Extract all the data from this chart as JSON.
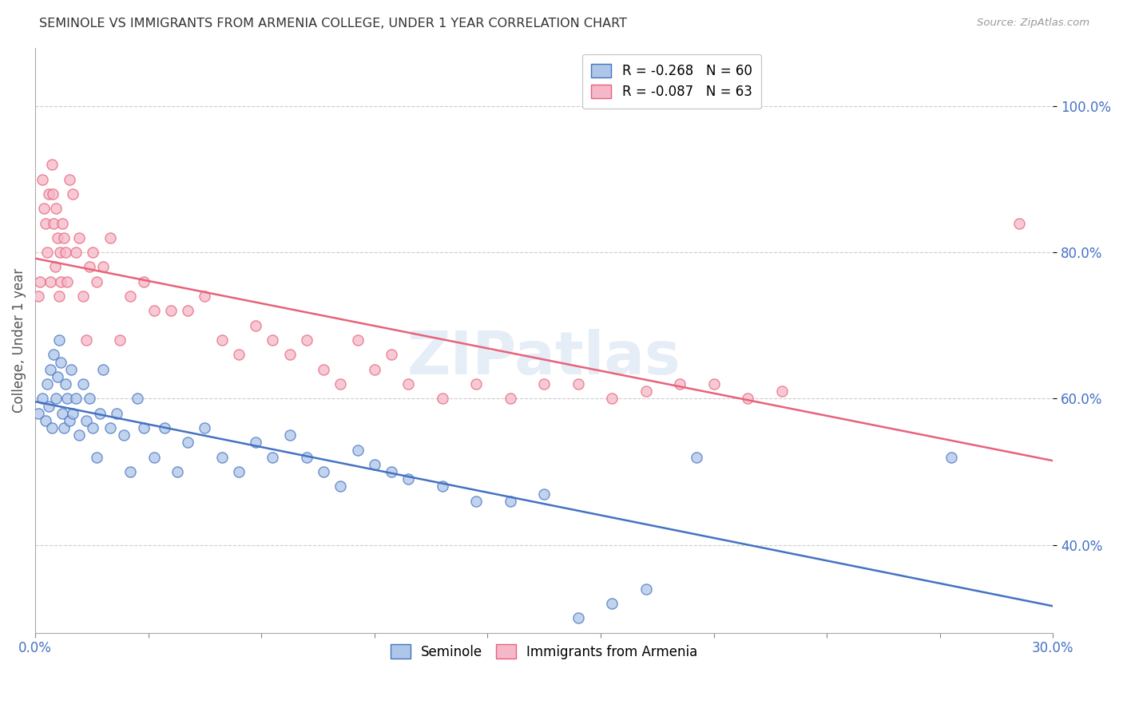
{
  "title": "SEMINOLE VS IMMIGRANTS FROM ARMENIA COLLEGE, UNDER 1 YEAR CORRELATION CHART",
  "source": "Source: ZipAtlas.com",
  "ylabel": "College, Under 1 year",
  "xlim": [
    0.0,
    30.0
  ],
  "ylim": [
    28.0,
    108.0
  ],
  "yticks": [
    40.0,
    60.0,
    80.0,
    100.0
  ],
  "ytick_labels": [
    "40.0%",
    "60.0%",
    "80.0%",
    "100.0%"
  ],
  "xticks": [
    0.0,
    3.333,
    6.667,
    10.0,
    13.333,
    16.667,
    20.0,
    23.333,
    26.667,
    30.0
  ],
  "xtick_labels_show": [
    "0.0%",
    "",
    "",
    "",
    "",
    "",
    "",
    "",
    "",
    "30.0%"
  ],
  "seminole_R": -0.268,
  "seminole_N": 60,
  "armenia_R": -0.087,
  "armenia_N": 63,
  "seminole_color": "#aec6e8",
  "armenia_color": "#f5b8c8",
  "seminole_line_color": "#4472c4",
  "armenia_line_color": "#e8637a",
  "watermark": "ZIPatlas",
  "seminole_x": [
    0.1,
    0.2,
    0.3,
    0.35,
    0.4,
    0.45,
    0.5,
    0.55,
    0.6,
    0.65,
    0.7,
    0.75,
    0.8,
    0.85,
    0.9,
    0.95,
    1.0,
    1.05,
    1.1,
    1.2,
    1.3,
    1.4,
    1.5,
    1.6,
    1.7,
    1.8,
    1.9,
    2.0,
    2.2,
    2.4,
    2.6,
    2.8,
    3.0,
    3.2,
    3.5,
    3.8,
    4.2,
    4.5,
    5.0,
    5.5,
    6.0,
    6.5,
    7.0,
    7.5,
    8.0,
    8.5,
    9.0,
    9.5,
    10.0,
    10.5,
    11.0,
    12.0,
    13.0,
    14.0,
    15.0,
    16.0,
    17.0,
    18.0,
    19.5,
    27.0
  ],
  "seminole_y": [
    58.0,
    60.0,
    57.0,
    62.0,
    59.0,
    64.0,
    56.0,
    66.0,
    60.0,
    63.0,
    68.0,
    65.0,
    58.0,
    56.0,
    62.0,
    60.0,
    57.0,
    64.0,
    58.0,
    60.0,
    55.0,
    62.0,
    57.0,
    60.0,
    56.0,
    52.0,
    58.0,
    64.0,
    56.0,
    58.0,
    55.0,
    50.0,
    60.0,
    56.0,
    52.0,
    56.0,
    50.0,
    54.0,
    56.0,
    52.0,
    50.0,
    54.0,
    52.0,
    55.0,
    52.0,
    50.0,
    48.0,
    53.0,
    51.0,
    50.0,
    49.0,
    48.0,
    46.0,
    46.0,
    47.0,
    30.0,
    32.0,
    34.0,
    52.0,
    52.0
  ],
  "armenia_x": [
    0.1,
    0.15,
    0.2,
    0.25,
    0.3,
    0.35,
    0.4,
    0.45,
    0.5,
    0.52,
    0.55,
    0.58,
    0.6,
    0.65,
    0.7,
    0.72,
    0.75,
    0.8,
    0.85,
    0.9,
    0.95,
    1.0,
    1.1,
    1.2,
    1.3,
    1.4,
    1.5,
    1.6,
    1.7,
    1.8,
    2.0,
    2.2,
    2.5,
    2.8,
    3.2,
    3.5,
    4.0,
    4.5,
    5.0,
    5.5,
    6.0,
    6.5,
    7.0,
    7.5,
    8.0,
    8.5,
    9.0,
    9.5,
    10.0,
    10.5,
    11.0,
    12.0,
    13.0,
    14.0,
    15.0,
    16.0,
    17.0,
    18.0,
    19.0,
    20.0,
    21.0,
    22.0,
    29.0
  ],
  "armenia_y": [
    74.0,
    76.0,
    90.0,
    86.0,
    84.0,
    80.0,
    88.0,
    76.0,
    92.0,
    88.0,
    84.0,
    78.0,
    86.0,
    82.0,
    74.0,
    80.0,
    76.0,
    84.0,
    82.0,
    80.0,
    76.0,
    90.0,
    88.0,
    80.0,
    82.0,
    74.0,
    68.0,
    78.0,
    80.0,
    76.0,
    78.0,
    82.0,
    68.0,
    74.0,
    76.0,
    72.0,
    72.0,
    72.0,
    74.0,
    68.0,
    66.0,
    70.0,
    68.0,
    66.0,
    68.0,
    64.0,
    62.0,
    68.0,
    64.0,
    66.0,
    62.0,
    60.0,
    62.0,
    60.0,
    62.0,
    62.0,
    60.0,
    61.0,
    62.0,
    62.0,
    60.0,
    61.0,
    84.0
  ]
}
